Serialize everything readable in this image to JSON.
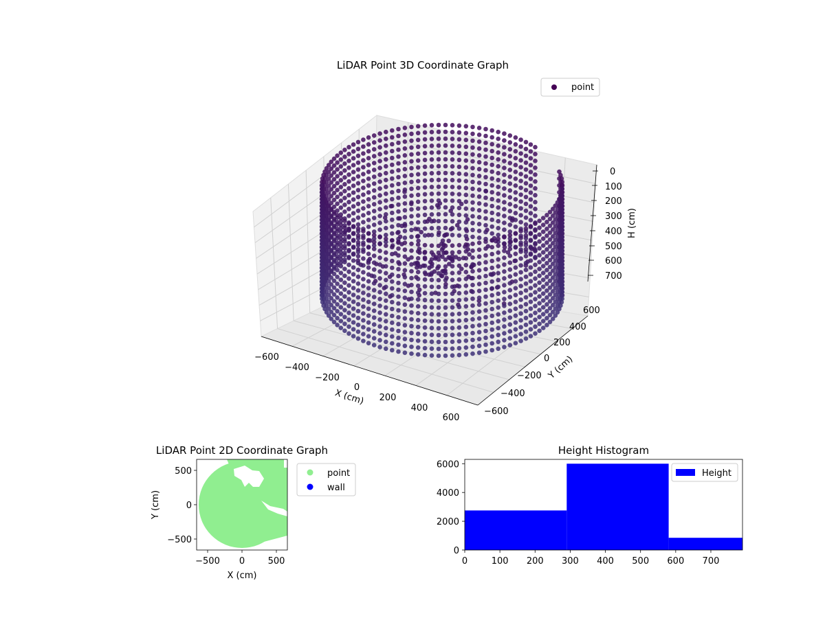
{
  "chart_data": [
    {
      "type": "scatter",
      "projection": "3d",
      "title": "LiDAR Point 3D Coordinate Graph",
      "xlabel": "X (cm)",
      "ylabel": "Y (cm)",
      "zlabel": "H (cm)",
      "legend": [
        "point"
      ],
      "legend_position": "top-right",
      "xticks": [
        "−600",
        "−400",
        "−200",
        "0",
        "200",
        "400",
        "600"
      ],
      "yticks": [
        "600",
        "400",
        "200",
        "0",
        "−200",
        "−400",
        "−600"
      ],
      "zticks": [
        "0",
        "100",
        "200",
        "300",
        "400",
        "500",
        "600",
        "700"
      ],
      "xlim": [
        -650,
        650
      ],
      "ylim": [
        -650,
        650
      ],
      "zlim": [
        0,
        780
      ],
      "zaxis_inverted": true,
      "grid": true,
      "colormap": "viridis",
      "structure": "cylindrical wall of points, radius about 600 cm, heights 0 to 700 cm, with sparse interior points"
    },
    {
      "type": "scatter",
      "title": "LiDAR Point 2D Coordinate Graph",
      "xlabel": "X (cm)",
      "ylabel": "Y (cm)",
      "xticks": [
        "−500",
        "0",
        "500"
      ],
      "yticks": [
        "500",
        "0",
        "−500"
      ],
      "xlim": [
        -660,
        660
      ],
      "ylim": [
        -660,
        660
      ],
      "legend": [
        "point",
        "wall"
      ],
      "legend_position": "outside-right",
      "colors": {
        "point": "#90ee90",
        "wall": "#0000ff"
      }
    },
    {
      "type": "bar",
      "title": "Height Histogram",
      "legend": [
        "Height"
      ],
      "legend_position": "top-right",
      "bins": [
        [
          0,
          290
        ],
        [
          290,
          580
        ],
        [
          580,
          790
        ]
      ],
      "values": [
        2750,
        6000,
        850
      ],
      "xlim": [
        0,
        790
      ],
      "ylim": [
        0,
        6300
      ],
      "xticks": [
        "0",
        "100",
        "200",
        "300",
        "400",
        "500",
        "600",
        "700"
      ],
      "yticks": [
        "0",
        "2000",
        "4000",
        "6000"
      ],
      "color": "#0000ff"
    }
  ]
}
